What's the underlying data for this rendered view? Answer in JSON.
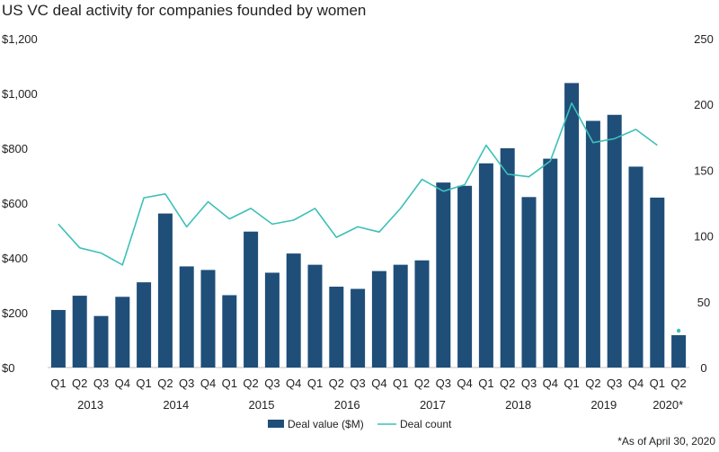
{
  "chart_data": {
    "type": "bar",
    "title": "US VC deal activity for companies founded by women",
    "footnote": "*As of April 30, 2020",
    "categories": [
      "Q1",
      "Q2",
      "Q3",
      "Q4",
      "Q1",
      "Q2",
      "Q3",
      "Q4",
      "Q1",
      "Q2",
      "Q3",
      "Q4",
      "Q1",
      "Q2",
      "Q3",
      "Q4",
      "Q1",
      "Q2",
      "Q3",
      "Q4",
      "Q1",
      "Q2",
      "Q3",
      "Q4",
      "Q1",
      "Q2",
      "Q3",
      "Q4",
      "Q1",
      "Q2"
    ],
    "years": [
      {
        "label": "2013",
        "start": 0,
        "end": 3
      },
      {
        "label": "2014",
        "start": 4,
        "end": 7
      },
      {
        "label": "2015",
        "start": 8,
        "end": 11
      },
      {
        "label": "2016",
        "start": 12,
        "end": 15
      },
      {
        "label": "2017",
        "start": 16,
        "end": 19
      },
      {
        "label": "2018",
        "start": 20,
        "end": 23
      },
      {
        "label": "2019",
        "start": 24,
        "end": 27
      },
      {
        "label": "2020*",
        "start": 28,
        "end": 29
      }
    ],
    "left_axis": {
      "ylim": [
        0,
        1200
      ],
      "ticks": [
        "$0",
        "$200",
        "$400",
        "$600",
        "$800",
        "$1,000",
        "$1,200"
      ],
      "tick_values": [
        0,
        200,
        400,
        600,
        800,
        1000,
        1200
      ]
    },
    "right_axis": {
      "ylim": [
        0,
        250
      ],
      "ticks": [
        "0",
        "50",
        "100",
        "150",
        "200",
        "250"
      ],
      "tick_values": [
        0,
        50,
        100,
        150,
        200,
        250
      ]
    },
    "series": [
      {
        "name": "Deal value ($M)",
        "type": "bar",
        "axis": "left",
        "color": "#1f4e79",
        "values": [
          210,
          262,
          188,
          258,
          311,
          562,
          369,
          356,
          264,
          496,
          346,
          416,
          375,
          295,
          287,
          352,
          375,
          391,
          675,
          663,
          745,
          800,
          622,
          762,
          1038,
          900,
          922,
          733,
          620,
          118
        ]
      },
      {
        "name": "Deal count",
        "type": "line",
        "axis": "right",
        "color": "#3cc0b8",
        "values": [
          109,
          91,
          87,
          78,
          129,
          132,
          107,
          126,
          113,
          121,
          109,
          112,
          121,
          99,
          107,
          103,
          121,
          143,
          134,
          139,
          169,
          147,
          145,
          157,
          201,
          171,
          174,
          181,
          169,
          null
        ],
        "extra_points": [
          {
            "index": 29,
            "value": 28
          }
        ]
      }
    ],
    "legend": {
      "placement": "bottom"
    }
  }
}
